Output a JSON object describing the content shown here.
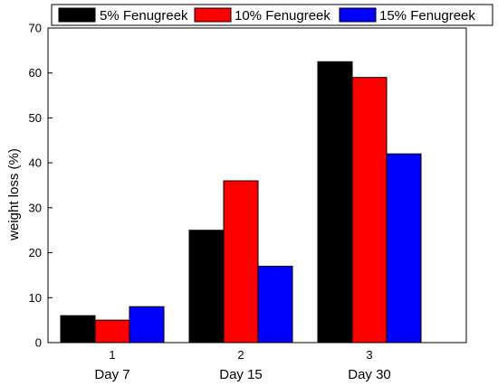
{
  "chart_data": {
    "type": "bar",
    "categories": [
      "1",
      "2",
      "3"
    ],
    "group_labels": [
      "Day 7",
      "Day 15",
      "Day 30"
    ],
    "series": [
      {
        "name": "5% Fenugreek",
        "color": "#000000",
        "values": [
          6,
          25,
          62.5
        ]
      },
      {
        "name": "10% Fenugreek",
        "color": "#ff0000",
        "values": [
          5,
          36,
          59
        ]
      },
      {
        "name": "15% Fenugreek",
        "color": "#0000ff",
        "values": [
          8,
          17,
          42
        ]
      }
    ],
    "xlabel": "",
    "ylabel": "weight loss (%)",
    "ylim": [
      0,
      70
    ],
    "yticks": [
      0,
      10,
      20,
      30,
      40,
      50,
      60,
      70
    ],
    "grid": false,
    "legend_position": "top"
  }
}
